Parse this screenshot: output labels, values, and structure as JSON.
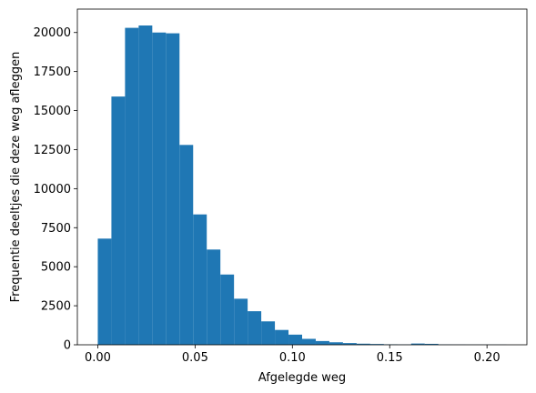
{
  "chart_data": {
    "type": "bar",
    "title": "",
    "xlabel": "Afgelegde weg",
    "ylabel": "Frequentie deeltjes die deze weg afleggen",
    "xlim": [
      -0.0105,
      0.2205
    ],
    "ylim": [
      0,
      21500
    ],
    "xticks": [
      0.0,
      0.05,
      0.1,
      0.15,
      0.2
    ],
    "xtick_labels": [
      "0.00",
      "0.05",
      "0.10",
      "0.15",
      "0.20"
    ],
    "yticks": [
      0,
      2500,
      5000,
      7500,
      10000,
      12500,
      15000,
      17500,
      20000
    ],
    "ytick_labels": [
      "0",
      "2500",
      "5000",
      "7500",
      "10000",
      "12500",
      "15000",
      "17500",
      "20000"
    ],
    "bin_edges": [
      0.0,
      0.007,
      0.014,
      0.021,
      0.028,
      0.035,
      0.042,
      0.049,
      0.056,
      0.063,
      0.07,
      0.077,
      0.084,
      0.091,
      0.098,
      0.105,
      0.112,
      0.119,
      0.126,
      0.133,
      0.14,
      0.147,
      0.154,
      0.161,
      0.168,
      0.175,
      0.182,
      0.189,
      0.196,
      0.203,
      0.21
    ],
    "values": [
      6800,
      15900,
      20300,
      20450,
      20000,
      19950,
      12800,
      8350,
      6100,
      4500,
      2950,
      2150,
      1500,
      950,
      650,
      380,
      240,
      160,
      110,
      70,
      50,
      30,
      20,
      80,
      60,
      20,
      15,
      10,
      10,
      10
    ],
    "color": "#1f77b4",
    "grid": false,
    "legend": "none"
  }
}
